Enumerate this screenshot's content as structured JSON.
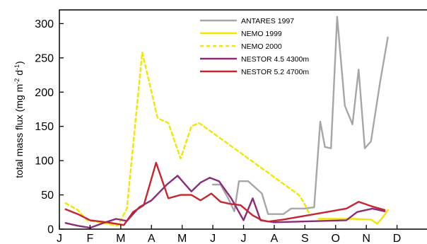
{
  "chart_data": {
    "type": "line",
    "ylabel_parts": {
      "pre": "total mass flux (mg m",
      "sup1": "-2",
      "mid": " d",
      "sup2": "-1",
      "post": ")"
    },
    "ylim": [
      0,
      320
    ],
    "yticks": [
      "0",
      "50",
      "100",
      "150",
      "200",
      "250",
      "300"
    ],
    "xlim": [
      0,
      12
    ],
    "months": [
      "J",
      "F",
      "M",
      "A",
      "M",
      "J",
      "J",
      "A",
      "S",
      "O",
      "N",
      "D"
    ],
    "grid": false,
    "legend_position": "top-right",
    "series": [
      {
        "name": "ANTARES 1997",
        "color": "#a6a6a6",
        "dash": "",
        "points": [
          [
            5.0,
            65
          ],
          [
            5.25,
            65
          ],
          [
            5.5,
            45
          ],
          [
            5.7,
            26
          ],
          [
            5.85,
            70
          ],
          [
            6.15,
            70
          ],
          [
            6.4,
            60
          ],
          [
            6.6,
            52
          ],
          [
            6.8,
            22
          ],
          [
            7.0,
            22
          ],
          [
            7.3,
            22
          ],
          [
            7.55,
            30
          ],
          [
            8.0,
            30
          ],
          [
            8.3,
            32
          ],
          [
            8.5,
            157
          ],
          [
            8.65,
            120
          ],
          [
            8.85,
            118
          ],
          [
            9.05,
            310
          ],
          [
            9.3,
            180
          ],
          [
            9.55,
            153
          ],
          [
            9.75,
            233
          ],
          [
            9.95,
            118
          ],
          [
            10.15,
            128
          ],
          [
            10.45,
            215
          ],
          [
            10.7,
            280
          ]
        ]
      },
      {
        "name": "NEMO 1999",
        "color": "#f2e600",
        "dash": "",
        "points": [
          [
            8.45,
            15
          ],
          [
            9.0,
            15
          ],
          [
            9.6,
            15
          ],
          [
            10.15,
            14
          ],
          [
            10.35,
            8
          ],
          [
            10.55,
            18
          ],
          [
            10.7,
            28
          ]
        ]
      },
      {
        "name": "NEMO 2000",
        "color": "#f2e600",
        "dash": "5,4",
        "points": [
          [
            0.2,
            38
          ],
          [
            0.6,
            28
          ],
          [
            0.9,
            13
          ],
          [
            1.3,
            10
          ],
          [
            1.9,
            5
          ],
          [
            2.2,
            30
          ],
          [
            2.7,
            258
          ],
          [
            3.2,
            162
          ],
          [
            3.55,
            155
          ],
          [
            3.95,
            103
          ],
          [
            4.3,
            150
          ],
          [
            4.55,
            155
          ],
          [
            7.8,
            50
          ],
          [
            7.95,
            40
          ],
          [
            8.15,
            22
          ]
        ]
      },
      {
        "name": "NESTOR 4.5 4300m",
        "color": "#8b2c7a",
        "dash": "",
        "points": [
          [
            0.2,
            9
          ],
          [
            0.6,
            5
          ],
          [
            1.0,
            2
          ],
          [
            1.5,
            10
          ],
          [
            1.85,
            15
          ],
          [
            2.2,
            12
          ],
          [
            2.6,
            32
          ],
          [
            3.0,
            42
          ],
          [
            3.5,
            65
          ],
          [
            3.85,
            78
          ],
          [
            4.3,
            55
          ],
          [
            4.6,
            68
          ],
          [
            4.9,
            75
          ],
          [
            5.2,
            70
          ],
          [
            5.6,
            45
          ],
          [
            6.0,
            13
          ],
          [
            6.3,
            45
          ],
          [
            6.55,
            13
          ],
          [
            7.0,
            10
          ],
          [
            9.35,
            13
          ],
          [
            9.7,
            25
          ],
          [
            10.2,
            30
          ],
          [
            10.6,
            26
          ]
        ]
      },
      {
        "name": "NESTOR 5.2 4700m",
        "color": "#c4252f",
        "dash": "",
        "points": [
          [
            0.2,
            29
          ],
          [
            0.6,
            22
          ],
          [
            1.0,
            13
          ],
          [
            1.55,
            10
          ],
          [
            2.1,
            6
          ],
          [
            2.4,
            25
          ],
          [
            2.75,
            35
          ],
          [
            3.15,
            97
          ],
          [
            3.55,
            45
          ],
          [
            3.95,
            50
          ],
          [
            4.3,
            50
          ],
          [
            4.6,
            42
          ],
          [
            4.95,
            52
          ],
          [
            5.25,
            40
          ],
          [
            5.55,
            37
          ],
          [
            5.9,
            35
          ],
          [
            6.3,
            20
          ],
          [
            6.6,
            13
          ],
          [
            6.8,
            11
          ],
          [
            7.3,
            14
          ],
          [
            9.35,
            30
          ],
          [
            9.75,
            40
          ],
          [
            10.2,
            33
          ],
          [
            10.6,
            28
          ]
        ]
      }
    ]
  }
}
